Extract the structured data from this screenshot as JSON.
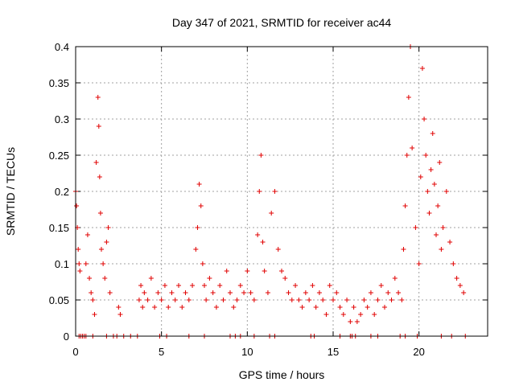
{
  "chart_data": {
    "type": "scatter",
    "title": "Day 347 of 2021, SRMTID for receiver ac44",
    "xlabel": "GPS time / hours",
    "ylabel": "SRMTID / TECUs",
    "xlim": [
      0,
      24
    ],
    "ylim": [
      0,
      0.4
    ],
    "xticks": [
      0,
      5,
      10,
      15,
      20
    ],
    "yticks": [
      0,
      0.05,
      0.1,
      0.15,
      0.2,
      0.25,
      0.3,
      0.35,
      0.4
    ],
    "xtick_labels": [
      "0",
      "5",
      "10",
      "15",
      "20"
    ],
    "ytick_labels": [
      "0",
      "0.05",
      "0.1",
      "0.15",
      "0.2",
      "0.25",
      "0.3",
      "0.35",
      "0.4"
    ],
    "grid": true,
    "marker": "+",
    "marker_color": "#e00000",
    "series": [
      {
        "name": "SRMTID",
        "x": [
          0.0,
          0.05,
          0.1,
          0.15,
          0.2,
          0.25,
          0.3,
          0.5,
          0.6,
          0.7,
          0.8,
          0.9,
          1.0,
          1.1,
          1.2,
          1.3,
          1.35,
          1.4,
          1.45,
          1.5,
          1.6,
          1.7,
          1.8,
          1.9,
          2.0,
          2.5,
          2.6,
          3.7,
          3.8,
          3.9,
          4.0,
          4.2,
          4.4,
          4.6,
          4.8,
          5.0,
          5.2,
          5.4,
          5.6,
          5.8,
          6.0,
          6.2,
          6.4,
          6.6,
          6.8,
          7.0,
          7.1,
          7.2,
          7.3,
          7.4,
          7.5,
          7.6,
          7.8,
          8.0,
          8.2,
          8.4,
          8.6,
          8.8,
          9.0,
          9.2,
          9.4,
          9.6,
          9.8,
          10.0,
          10.2,
          10.4,
          10.6,
          10.7,
          10.8,
          10.9,
          11.0,
          11.2,
          11.4,
          11.6,
          11.8,
          12.0,
          12.2,
          12.4,
          12.6,
          12.8,
          13.0,
          13.2,
          13.4,
          13.6,
          13.8,
          14.0,
          14.2,
          14.4,
          14.6,
          14.8,
          15.0,
          15.2,
          15.4,
          15.6,
          15.8,
          16.0,
          16.2,
          16.4,
          16.6,
          16.8,
          17.0,
          17.2,
          17.4,
          17.6,
          17.8,
          18.0,
          18.2,
          18.4,
          18.6,
          18.8,
          19.0,
          19.1,
          19.2,
          19.3,
          19.4,
          19.5,
          19.6,
          19.8,
          20.0,
          20.1,
          20.2,
          20.3,
          20.4,
          20.5,
          20.6,
          20.7,
          20.8,
          20.9,
          21.0,
          21.1,
          21.2,
          21.3,
          21.4,
          21.6,
          21.8,
          22.0,
          22.2,
          22.4,
          22.6
        ],
        "y": [
          0.2,
          0.18,
          0.15,
          0.12,
          0.1,
          0.09,
          0.0,
          0.0,
          0.1,
          0.14,
          0.08,
          0.06,
          0.05,
          0.03,
          0.24,
          0.33,
          0.29,
          0.22,
          0.17,
          0.12,
          0.1,
          0.08,
          0.13,
          0.15,
          0.06,
          0.04,
          0.03,
          0.05,
          0.07,
          0.04,
          0.06,
          0.05,
          0.08,
          0.04,
          0.06,
          0.05,
          0.07,
          0.04,
          0.06,
          0.05,
          0.07,
          0.04,
          0.06,
          0.05,
          0.07,
          0.12,
          0.15,
          0.21,
          0.18,
          0.1,
          0.07,
          0.05,
          0.08,
          0.06,
          0.04,
          0.07,
          0.05,
          0.09,
          0.06,
          0.04,
          0.05,
          0.07,
          0.06,
          0.09,
          0.06,
          0.05,
          0.14,
          0.2,
          0.25,
          0.13,
          0.09,
          0.06,
          0.17,
          0.2,
          0.12,
          0.09,
          0.08,
          0.06,
          0.05,
          0.07,
          0.05,
          0.04,
          0.06,
          0.05,
          0.07,
          0.04,
          0.06,
          0.05,
          0.03,
          0.07,
          0.05,
          0.06,
          0.04,
          0.03,
          0.05,
          0.02,
          0.04,
          0.02,
          0.03,
          0.05,
          0.04,
          0.06,
          0.03,
          0.05,
          0.07,
          0.04,
          0.06,
          0.05,
          0.08,
          0.06,
          0.05,
          0.12,
          0.18,
          0.25,
          0.33,
          0.4,
          0.26,
          0.15,
          0.1,
          0.22,
          0.37,
          0.3,
          0.25,
          0.2,
          0.17,
          0.23,
          0.28,
          0.21,
          0.14,
          0.18,
          0.24,
          0.12,
          0.15,
          0.2,
          0.13,
          0.1,
          0.08,
          0.07,
          0.06
        ],
        "zero_markers_x": [
          0.2,
          0.4,
          0.6,
          1.0,
          1.8,
          2.2,
          2.4,
          2.8,
          3.2,
          3.6,
          4.9,
          5.3,
          6.6,
          7.5,
          9.0,
          9.3,
          9.6,
          10.4,
          11.3,
          11.6,
          13.7,
          13.9,
          15.4,
          16.0,
          16.1,
          16.3,
          17.2,
          17.6,
          18.9,
          19.2,
          19.9,
          21.3,
          21.9,
          22.7
        ]
      }
    ]
  }
}
